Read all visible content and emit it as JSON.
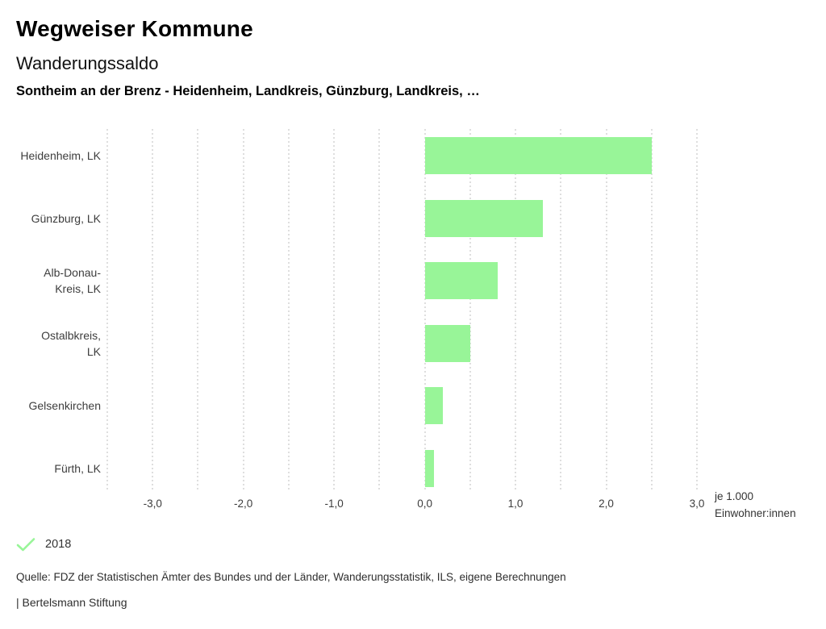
{
  "header": {
    "title": "Wegweiser Kommune",
    "chart_title": "Wanderungssaldo",
    "subtitle": "Sontheim an der Brenz - Heidenheim, Landkreis, Günzburg, Landkreis, …"
  },
  "chart_data": {
    "type": "bar",
    "orientation": "horizontal",
    "title": "Wanderungssaldo",
    "subtitle": "Sontheim an der Brenz - Heidenheim, Landkreis, Günzburg, Landkreis, …",
    "categories": [
      "Heidenheim, LK",
      "Günzburg, LK",
      "Alb-Donau-Kreis, LK",
      "Ostalbkreis, LK",
      "Gelsenkirchen",
      "Fürth, LK"
    ],
    "category_label_lines": [
      [
        "Heidenheim, LK"
      ],
      [
        "Günzburg, LK"
      ],
      [
        "Alb-Donau-",
        "Kreis, LK"
      ],
      [
        "Ostalbkreis,",
        "LK"
      ],
      [
        "Gelsenkirchen"
      ],
      [
        "Fürth, LK"
      ]
    ],
    "series": [
      {
        "name": "2018",
        "values": [
          2.5,
          1.3,
          0.8,
          0.5,
          0.2,
          0.1
        ]
      }
    ],
    "xlabel": "je 1.000 Einwohner:innen",
    "ylabel": "",
    "xlim": [
      -3.5,
      3.0
    ],
    "grid_step": 0.5,
    "grid": true,
    "x_ticks": [
      {
        "value": -3,
        "label": "-3,0"
      },
      {
        "value": -2,
        "label": "-2,0"
      },
      {
        "value": -1,
        "label": "-1,0"
      },
      {
        "value": 0,
        "label": "0,0"
      },
      {
        "value": 1,
        "label": "1,0"
      },
      {
        "value": 2,
        "label": "2,0"
      },
      {
        "value": 3,
        "label": "3,0"
      }
    ],
    "unit_label": [
      "je 1.000",
      "Einwohner:innen"
    ],
    "bar_color": "#98f598",
    "legend_position": "bottom-left"
  },
  "legend": {
    "items": [
      {
        "label": "2018",
        "checked": true
      }
    ]
  },
  "footer": {
    "source": "Quelle: FDZ der Statistischen Ämter des Bundes und der Länder, Wanderungsstatistik, ILS, eigene Berechnungen",
    "attribution": "| Bertelsmann Stiftung"
  },
  "colors": {
    "accent_green": "#98f598",
    "gridline": "#bdbdbd",
    "text_primary": "#000000",
    "text_secondary": "#3d3d3d"
  }
}
